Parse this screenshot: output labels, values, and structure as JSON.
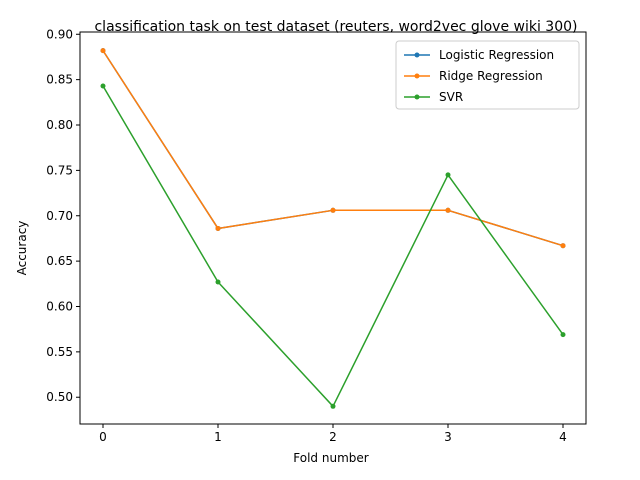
{
  "chart_data": {
    "type": "line",
    "title": "classification task on test dataset (reuters, word2vec glove wiki 300)",
    "xlabel": "Fold number",
    "ylabel": "Accuracy",
    "x": [
      0,
      1,
      2,
      3,
      4
    ],
    "xticks": [
      "0",
      "1",
      "2",
      "3",
      "4"
    ],
    "xlim": [
      -0.2,
      4.2
    ],
    "yticks": [
      "0.50",
      "0.55",
      "0.60",
      "0.65",
      "0.70",
      "0.75",
      "0.80",
      "0.85",
      "0.90"
    ],
    "ylim": [
      0.4705,
      0.9025
    ],
    "grid": false,
    "legend_position": "top-right",
    "series": [
      {
        "name": "Logistic Regression",
        "color": "#1f77b4",
        "values": [
          0.882,
          0.686,
          0.706,
          0.706,
          0.667
        ]
      },
      {
        "name": "Ridge Regression",
        "color": "#ff7f0e",
        "values": [
          0.882,
          0.686,
          0.706,
          0.706,
          0.667
        ]
      },
      {
        "name": "SVR",
        "color": "#2ca02c",
        "values": [
          0.843,
          0.627,
          0.49,
          0.745,
          0.569
        ]
      }
    ]
  }
}
